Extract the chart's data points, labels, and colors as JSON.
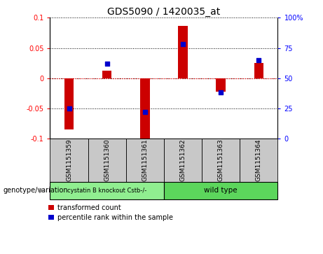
{
  "title": "GDS5090 / 1420035_at",
  "samples": [
    "GSM1151359",
    "GSM1151360",
    "GSM1151361",
    "GSM1151362",
    "GSM1151363",
    "GSM1151364"
  ],
  "red_bars": [
    -0.085,
    0.012,
    -0.107,
    0.086,
    -0.022,
    0.025
  ],
  "blue_squares_pct": [
    25,
    62,
    22,
    78,
    38,
    65
  ],
  "ylim_left": [
    -0.1,
    0.1
  ],
  "ylim_right": [
    0,
    100
  ],
  "yticks_left": [
    -0.1,
    -0.05,
    0.0,
    0.05,
    0.1
  ],
  "yticks_right": [
    0,
    25,
    50,
    75,
    100
  ],
  "ytick_labels_left": [
    "-0.1",
    "-0.05",
    "0",
    "0.05",
    "0.1"
  ],
  "ytick_labels_right": [
    "0",
    "25",
    "50",
    "75",
    "100%"
  ],
  "bar_color": "#CC0000",
  "square_color": "#0000CC",
  "bar_width": 0.25,
  "legend_label_red": "transformed count",
  "legend_label_blue": "percentile rank within the sample",
  "genotype_label": "genotype/variation",
  "group1_label": "cystatin B knockout Cstb-/-",
  "group2_label": "wild type",
  "xlabel_bg": "#C8C8C8",
  "group1_color": "#90EE90",
  "group2_color": "#5CD65C"
}
